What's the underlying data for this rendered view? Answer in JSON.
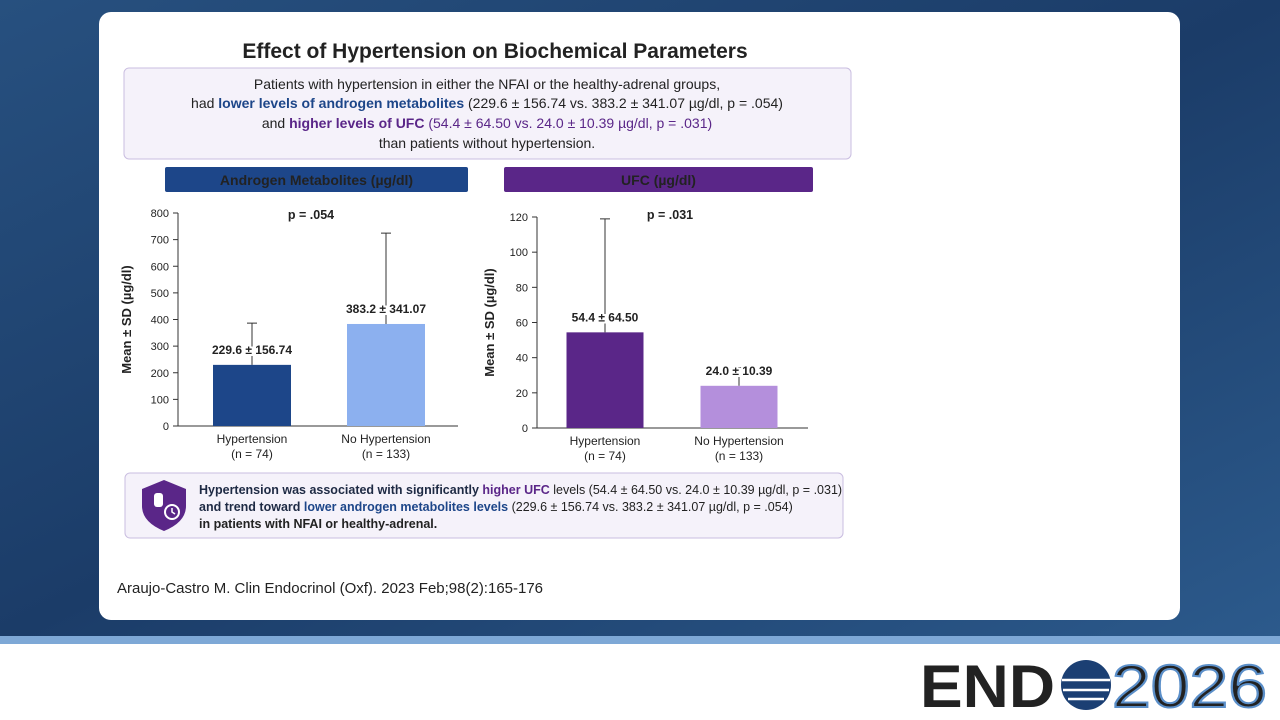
{
  "slide_title": "Effect of Hypertension on Biochemical Parameters",
  "summary": {
    "line1": "Patients with hypertension in either the NFAI or the healthy-adrenal groups,",
    "line2": [
      "had ",
      "lower levels of androgen metabolites",
      " (229.6 ± 156.74 vs. 383.2 ± 341.07 µg/dl, p = .054)"
    ],
    "line3": [
      "and ",
      "higher levels of UFC",
      " (54.4 ± 64.50 vs. 24.0 ± 10.39 µg/dl, p = .031)"
    ],
    "line4": "than patients without hypertension."
  },
  "chart_data": [
    {
      "type": "bar",
      "title": "Androgen Metabolites (µg/dl)",
      "y_label": "Mean ± SD (µg/dl)",
      "annotation": "p = .054",
      "categories": [
        "Hypertension",
        "No Hypertension"
      ],
      "category_notes": [
        "(n = 74)",
        "(n = 133)"
      ],
      "values": [
        229.6,
        383.2
      ],
      "errors": [
        156.74,
        341.07
      ],
      "value_labels": [
        "229.6 ± 156.74",
        "383.2 ± 341.07"
      ],
      "colors": [
        "#1d4689",
        "#8cb0ef"
      ],
      "accent": "#1d4689",
      "ylim": [
        0,
        800
      ],
      "yticks": [
        0,
        100,
        200,
        300,
        400,
        500,
        600,
        700,
        800
      ]
    },
    {
      "type": "bar",
      "title": "UFC (µg/dl)",
      "y_label": "Mean ± SD (µg/dl)",
      "annotation": "p = .031",
      "categories": [
        "Hypertension",
        "No Hypertension"
      ],
      "category_notes": [
        "(n = 74)",
        "(n = 133)"
      ],
      "values": [
        54.4,
        24.0
      ],
      "errors": [
        64.5,
        10.39
      ],
      "value_labels": [
        "54.4 ± 64.50",
        "24.0 ± 10.39"
      ],
      "colors": [
        "#5a2688",
        "#b48fdc"
      ],
      "accent": "#5a2688",
      "ylim": [
        0,
        120
      ],
      "yticks": [
        0,
        20,
        40,
        60,
        80,
        100,
        120
      ]
    }
  ],
  "callout": {
    "line1": [
      "Hypertension was associated with significantly ",
      "higher UFC",
      " levels (54.4 ± 64.50 vs. 24.0 ± 10.39 µg/dl, p = .031)"
    ],
    "line2": [
      "and trend toward ",
      "lower androgen metabolites levels",
      " (229.6 ± 156.74 vs. 383.2 ± 341.07 µg/dl, p = .054)"
    ],
    "line3": "in patients with NFAI or healthy-adrenal."
  },
  "citation": "Araujo-Castro M. Clin Endocrinol (Oxf). 2023 Feb;98(2):165-176",
  "logo": {
    "brand": "END",
    "year": "2026"
  }
}
